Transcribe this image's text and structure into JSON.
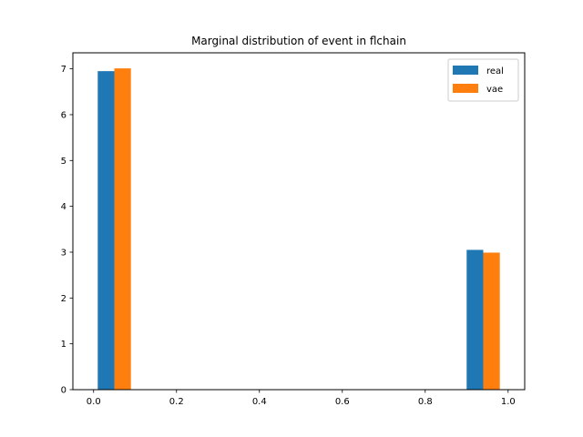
{
  "chart_data": {
    "type": "bar",
    "title": "Marginal distribution of event in flchain",
    "xlabel": "",
    "ylabel": "",
    "xlim": [
      -0.05,
      1.04
    ],
    "ylim": [
      0,
      7.35
    ],
    "xticks": [
      0.0,
      0.2,
      0.4,
      0.6,
      0.8,
      1.0
    ],
    "xtick_labels": [
      "0.0",
      "0.2",
      "0.4",
      "0.6",
      "0.8",
      "1.0"
    ],
    "yticks": [
      0,
      1,
      2,
      3,
      4,
      5,
      6,
      7
    ],
    "ytick_labels": [
      "0",
      "1",
      "2",
      "3",
      "4",
      "5",
      "6",
      "7"
    ],
    "bin_width": 0.04,
    "legend_position": "top-right",
    "grid": false,
    "series": [
      {
        "name": "real",
        "color": "#1f77b4",
        "bars": [
          {
            "x_start": 0.01,
            "value": 6.95
          },
          {
            "x_start": 0.9,
            "value": 3.05
          }
        ]
      },
      {
        "name": "vae",
        "color": "#ff7f0e",
        "bars": [
          {
            "x_start": 0.05,
            "value": 7.01
          },
          {
            "x_start": 0.94,
            "value": 2.99
          }
        ]
      }
    ]
  }
}
